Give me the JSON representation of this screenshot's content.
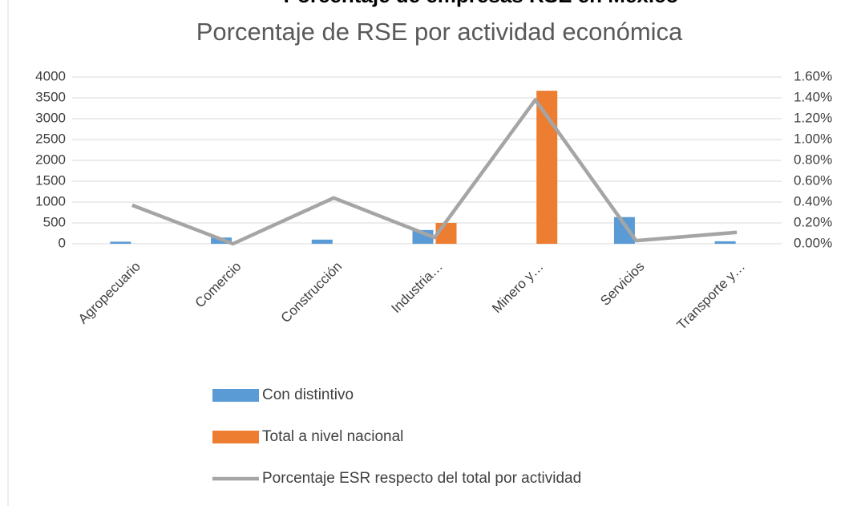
{
  "chart_data": {
    "type": "bar",
    "supertitle": "Porcentaje de empresas RSE en México",
    "title": "Porcentaje de RSE por actividad económica",
    "categories": [
      "Agropecuario",
      "Comercio",
      "Construcción",
      "Industria…",
      "Minero y…",
      "Servicios",
      "Transporte y…"
    ],
    "series": [
      {
        "name": "Con distintivo",
        "type": "bar",
        "color": "#5b9bd5",
        "values": [
          50,
          150,
          100,
          330,
          0,
          640,
          60
        ]
      },
      {
        "name": "Total a nivel nacional",
        "type": "bar",
        "color": "#ed7d31",
        "values": [
          0,
          0,
          0,
          500,
          3670,
          0,
          0
        ]
      },
      {
        "name": "Porcentaje ESR respecto del total por actividad",
        "type": "line",
        "axis": "y2",
        "color": "#a5a5a5",
        "values": [
          0.37,
          0.0,
          0.44,
          0.06,
          1.38,
          0.03,
          0.11
        ]
      }
    ],
    "ylim": [
      0,
      4000
    ],
    "yticks": [
      0,
      500,
      1000,
      1500,
      2000,
      2500,
      3000,
      3500,
      4000
    ],
    "y2lim": [
      0,
      1.6
    ],
    "y2ticks": [
      {
        "value": 0,
        "label": "0.00%"
      },
      {
        "value": 0.2,
        "label": "0.20%"
      },
      {
        "value": 0.4,
        "label": "0.40%"
      },
      {
        "value": 0.6,
        "label": "0.60%"
      },
      {
        "value": 0.8,
        "label": "0.80%"
      },
      {
        "value": 1.0,
        "label": "1.00%"
      },
      {
        "value": 1.2,
        "label": "1.20%"
      },
      {
        "value": 1.4,
        "label": "1.40%"
      },
      {
        "value": 1.6,
        "label": "1.60%"
      }
    ],
    "grid": true,
    "legend": "bottom"
  }
}
